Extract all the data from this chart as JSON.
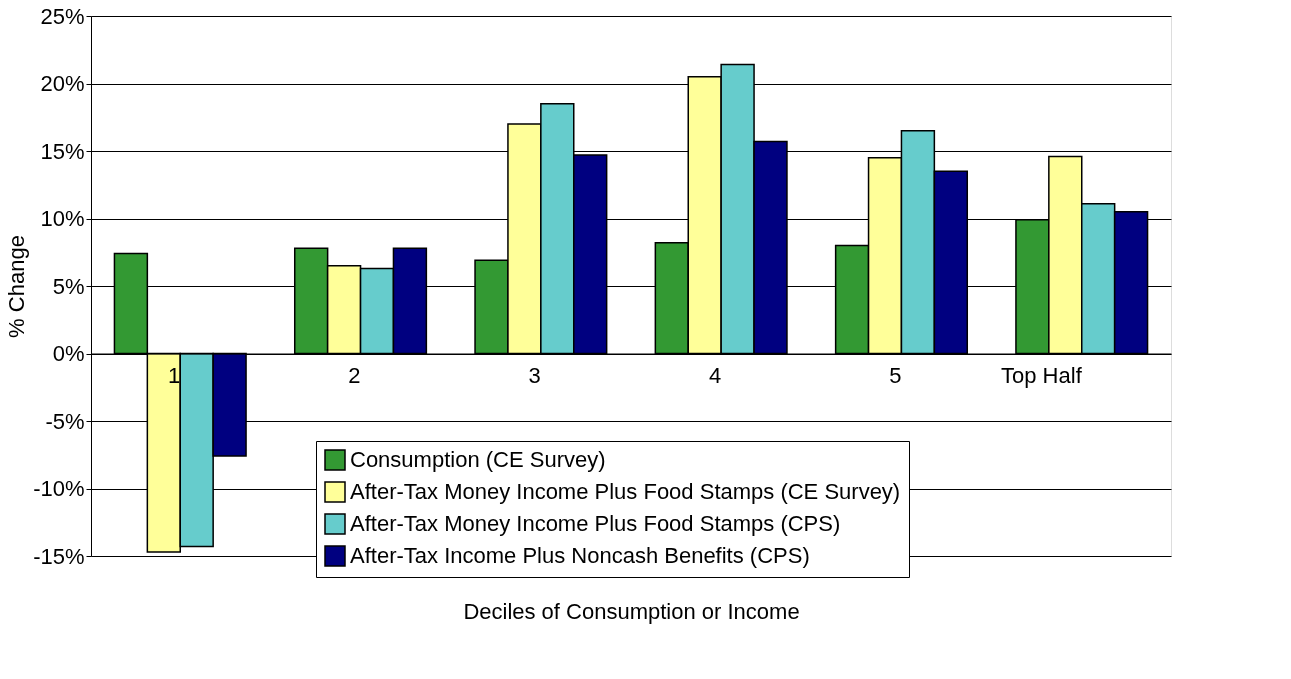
{
  "chart_data": {
    "type": "bar",
    "xlabel": "Deciles of Consumption or Income",
    "ylabel": "% Change",
    "categories": [
      "1",
      "2",
      "3",
      "4",
      "5",
      "Top Half"
    ],
    "series": [
      {
        "name": "Consumption (CE Survey)",
        "color": "#339933",
        "values": [
          7.4,
          7.8,
          6.9,
          8.2,
          8.0,
          9.9
        ]
      },
      {
        "name": "After-Tax Money Income Plus Food Stamps (CE Survey)",
        "color": "#ffff99",
        "values": [
          -14.7,
          6.5,
          17.0,
          20.5,
          14.5,
          14.6
        ]
      },
      {
        "name": "After-Tax Money Income Plus Food Stamps (CPS)",
        "color": "#66cccc",
        "values": [
          -14.3,
          6.3,
          18.5,
          21.4,
          16.5,
          11.1
        ]
      },
      {
        "name": "After-Tax Income Plus Noncash Benefits (CPS)",
        "color": "#000080",
        "values": [
          -7.6,
          7.8,
          14.7,
          15.7,
          13.5,
          10.5
        ]
      }
    ],
    "ylim": [
      -15,
      25
    ],
    "yticks": [
      {
        "value": -15,
        "label": "-15%"
      },
      {
        "value": -10,
        "label": "-10%"
      },
      {
        "value": -5,
        "label": "-5%"
      },
      {
        "value": 0,
        "label": "0%"
      },
      {
        "value": 5,
        "label": "5%"
      },
      {
        "value": 10,
        "label": "10%"
      },
      {
        "value": 15,
        "label": "15%"
      },
      {
        "value": 20,
        "label": "20%"
      },
      {
        "value": 25,
        "label": "25%"
      }
    ],
    "grid": "y",
    "legend": "bottom right"
  }
}
